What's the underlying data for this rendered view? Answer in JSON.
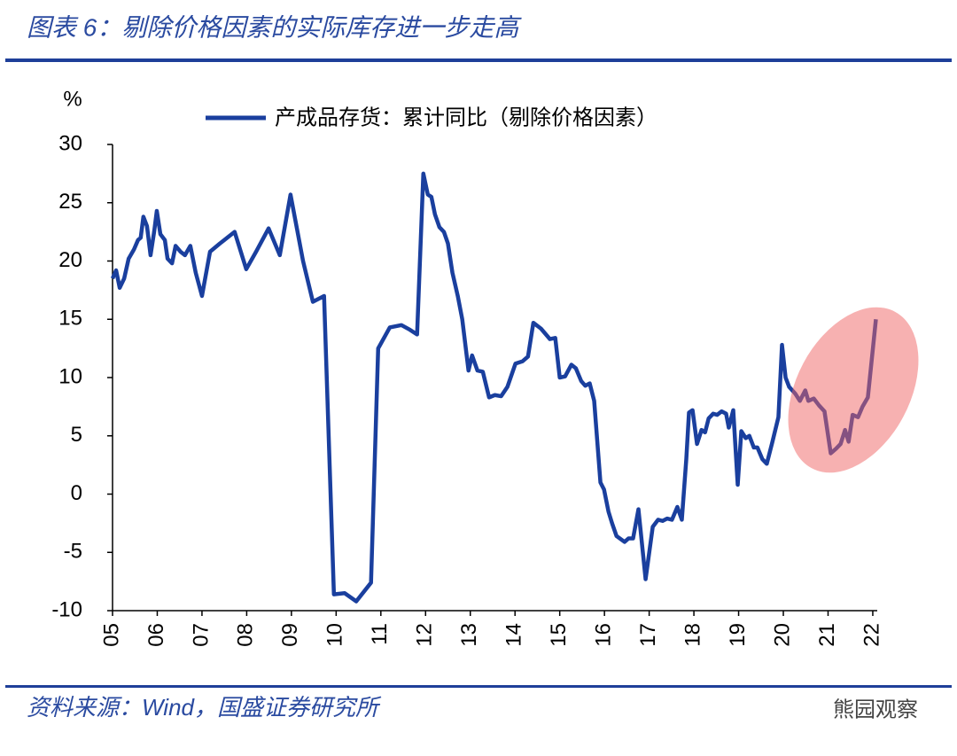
{
  "chart_data": {
    "type": "line",
    "title": "图表 6：剔除价格因素的实际库存进一步走高",
    "y_label": "%",
    "source": "资料来源：Wind，国盛证券研究所",
    "x": [
      5.0,
      5.08,
      5.16,
      5.26,
      5.36,
      5.48,
      5.57,
      5.63,
      5.69,
      5.77,
      5.85,
      5.93,
      5.99,
      6.07,
      6.17,
      6.23,
      6.33,
      6.41,
      6.52,
      6.62,
      6.74,
      6.86,
      7.0,
      7.18,
      7.4,
      7.73,
      7.99,
      8.21,
      8.49,
      8.74,
      8.98,
      9.26,
      9.48,
      9.73,
      9.95,
      10.19,
      10.45,
      10.78,
      10.94,
      11.2,
      11.46,
      11.65,
      11.81,
      11.95,
      12.05,
      12.13,
      12.21,
      12.31,
      12.41,
      12.5,
      12.6,
      12.72,
      12.82,
      12.96,
      13.04,
      13.16,
      13.28,
      13.42,
      13.55,
      13.69,
      13.83,
      14.01,
      14.17,
      14.29,
      14.41,
      14.58,
      14.78,
      14.9,
      15.0,
      15.12,
      15.26,
      15.36,
      15.48,
      15.57,
      15.67,
      15.77,
      15.91,
      15.99,
      16.09,
      16.17,
      16.27,
      16.45,
      16.54,
      16.64,
      16.76,
      16.92,
      17.08,
      17.2,
      17.3,
      17.4,
      17.51,
      17.63,
      17.73,
      17.83,
      17.89,
      17.97,
      18.07,
      18.17,
      18.25,
      18.33,
      18.43,
      18.52,
      18.62,
      18.72,
      18.78,
      18.88,
      18.98,
      19.06,
      19.16,
      19.24,
      19.34,
      19.42,
      19.53,
      19.63,
      19.75,
      19.89,
      19.97,
      20.05,
      20.13,
      20.27,
      20.37,
      20.49,
      20.56,
      20.68,
      20.8,
      20.92,
      21.06,
      21.18,
      21.28,
      21.38,
      21.46,
      21.55,
      21.67,
      21.77,
      21.89,
      22.07
    ],
    "series": [
      {
        "name": "产成品存货：累计同比（剔除价格因素）",
        "color": "#1a3f9e",
        "values": [
          18.5,
          19.2,
          17.7,
          18.5,
          20.2,
          21,
          21.8,
          22,
          23.8,
          23,
          20.5,
          22.5,
          24.3,
          22.3,
          21.8,
          20.2,
          19.8,
          21.3,
          20.8,
          20.5,
          21.3,
          19,
          17,
          20.8,
          21.5,
          22.5,
          19.3,
          20.8,
          22.8,
          20.5,
          25.7,
          20,
          16.5,
          17,
          -8.6,
          -8.5,
          -9.2,
          -7.6,
          12.5,
          14.3,
          14.5,
          14.1,
          13.7,
          27.5,
          25.7,
          25.5,
          24,
          22.9,
          22.5,
          21.5,
          19,
          17,
          15,
          10.6,
          11.9,
          10.6,
          10.5,
          8.3,
          8.5,
          8.4,
          9.2,
          11.2,
          11.4,
          11.8,
          14.7,
          14.2,
          13.3,
          13.4,
          10,
          10.1,
          11.1,
          10.8,
          9.7,
          9.3,
          9.5,
          8,
          1,
          0.4,
          -1.5,
          -2.5,
          -3.6,
          -4.1,
          -3.8,
          -3.8,
          -1.3,
          -7.3,
          -2.8,
          -2.2,
          -2.3,
          -2.1,
          -2.2,
          -1.1,
          -2.2,
          3,
          7,
          7.2,
          4.3,
          5.5,
          5.3,
          6.5,
          6.9,
          6.8,
          7.1,
          6.9,
          5.7,
          7.2,
          0.8,
          5.4,
          4.8,
          5,
          4,
          4,
          3,
          2.6,
          4.4,
          6.6,
          12.8,
          10,
          9.2,
          8.6,
          8,
          8.9,
          8,
          8.2,
          7.6,
          7.1,
          3.5,
          3.9,
          4.3,
          5.5,
          4.5,
          6.8,
          6.6,
          7.5,
          8.3,
          15
        ]
      }
    ],
    "xlim": [
      5,
      22.1
    ],
    "xticks": [
      {
        "value": 5,
        "label": "05"
      },
      {
        "value": 6,
        "label": "06"
      },
      {
        "value": 7,
        "label": "07"
      },
      {
        "value": 8,
        "label": "08"
      },
      {
        "value": 9,
        "label": "09"
      },
      10,
      11,
      12,
      13,
      14,
      15,
      16,
      17,
      18,
      19,
      20,
      21,
      22
    ],
    "ylim": [
      -10,
      30
    ],
    "yticks": [
      -10,
      -5,
      0,
      5,
      10,
      15,
      20,
      25,
      30
    ],
    "grid": false
  },
  "watermark": "熊园观察"
}
